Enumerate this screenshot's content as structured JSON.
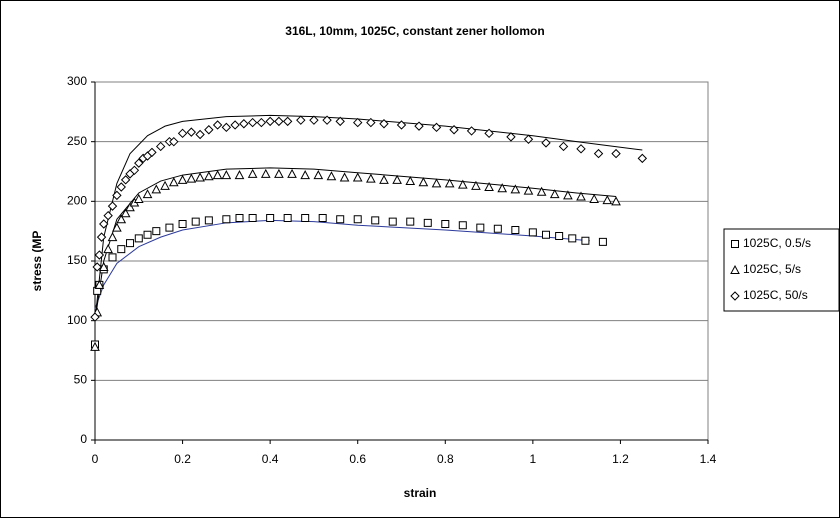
{
  "chart_data": {
    "type": "scatter",
    "title": "316L, 10mm, 1025C, constant zener hollomon",
    "xlabel": "strain",
    "ylabel": "stress (MP",
    "xlim": [
      0,
      1.4
    ],
    "ylim": [
      0,
      300
    ],
    "xticks": [
      0,
      0.2,
      0.4,
      0.6,
      0.8,
      1,
      1.2,
      1.4
    ],
    "yticks": [
      0,
      50,
      100,
      150,
      200,
      250,
      300
    ],
    "grid": true,
    "legend": "right",
    "series": [
      {
        "name": "1025C, 0.5/s",
        "marker": "square",
        "color": "#000000",
        "x": [
          0,
          0.005,
          0.01,
          0.02,
          0.04,
          0.06,
          0.08,
          0.1,
          0.12,
          0.14,
          0.17,
          0.2,
          0.23,
          0.26,
          0.3,
          0.33,
          0.36,
          0.4,
          0.44,
          0.48,
          0.52,
          0.56,
          0.6,
          0.64,
          0.68,
          0.72,
          0.76,
          0.8,
          0.84,
          0.88,
          0.92,
          0.96,
          1.0,
          1.03,
          1.06,
          1.09,
          1.12,
          1.16
        ],
        "values": [
          80,
          125,
          130,
          143,
          153,
          160,
          165,
          169,
          172,
          175,
          178,
          181,
          183,
          184,
          185,
          186,
          186,
          186,
          186,
          186,
          186,
          185,
          185,
          184,
          183,
          183,
          182,
          181,
          180,
          178,
          177,
          176,
          174,
          172,
          171,
          169,
          167,
          166
        ]
      },
      {
        "name": "1025C, 5/s",
        "marker": "triangle",
        "color": "#000000",
        "x": [
          0,
          0.005,
          0.01,
          0.02,
          0.03,
          0.04,
          0.05,
          0.06,
          0.07,
          0.08,
          0.09,
          0.1,
          0.12,
          0.14,
          0.16,
          0.18,
          0.2,
          0.22,
          0.24,
          0.26,
          0.28,
          0.3,
          0.33,
          0.36,
          0.39,
          0.42,
          0.45,
          0.48,
          0.51,
          0.54,
          0.57,
          0.6,
          0.63,
          0.66,
          0.69,
          0.72,
          0.75,
          0.78,
          0.81,
          0.84,
          0.87,
          0.9,
          0.93,
          0.96,
          0.99,
          1.02,
          1.05,
          1.08,
          1.11,
          1.14,
          1.17,
          1.19
        ],
        "values": [
          78,
          107,
          130,
          145,
          160,
          170,
          178,
          185,
          190,
          195,
          199,
          202,
          206,
          210,
          213,
          216,
          218,
          219,
          220,
          221,
          222,
          222,
          222,
          223,
          223,
          223,
          223,
          222,
          222,
          221,
          220,
          220,
          219,
          218,
          218,
          217,
          216,
          215,
          215,
          214,
          213,
          212,
          211,
          210,
          209,
          208,
          206,
          205,
          204,
          202,
          201,
          200
        ]
      },
      {
        "name": "1025C, 50/s",
        "marker": "diamond",
        "color": "#000000",
        "x": [
          0,
          0.005,
          0.01,
          0.015,
          0.02,
          0.03,
          0.04,
          0.05,
          0.06,
          0.07,
          0.08,
          0.09,
          0.1,
          0.11,
          0.12,
          0.13,
          0.15,
          0.17,
          0.18,
          0.2,
          0.22,
          0.24,
          0.26,
          0.28,
          0.3,
          0.32,
          0.34,
          0.36,
          0.38,
          0.4,
          0.42,
          0.44,
          0.47,
          0.5,
          0.53,
          0.56,
          0.6,
          0.63,
          0.66,
          0.7,
          0.74,
          0.78,
          0.82,
          0.86,
          0.9,
          0.95,
          0.99,
          1.03,
          1.07,
          1.11,
          1.15,
          1.19,
          1.25
        ],
        "values": [
          103,
          145,
          155,
          170,
          181,
          188,
          196,
          205,
          212,
          218,
          223,
          226,
          232,
          236,
          238,
          241,
          246,
          250,
          250,
          257,
          258,
          256,
          260,
          264,
          262,
          264,
          265,
          266,
          266,
          267,
          267,
          267,
          268,
          268,
          268,
          267,
          266,
          266,
          265,
          264,
          263,
          262,
          260,
          259,
          257,
          254,
          252,
          249,
          246,
          244,
          240,
          240,
          236
        ]
      }
    ],
    "lines": [
      {
        "color": "#2b3a9a",
        "x": [
          0,
          0.02,
          0.05,
          0.1,
          0.15,
          0.2,
          0.3,
          0.4,
          0.5,
          0.6,
          0.8,
          1.0,
          1.13
        ],
        "values": [
          110,
          130,
          148,
          162,
          170,
          176,
          182,
          184,
          183,
          180,
          176,
          171,
          167
        ]
      },
      {
        "color": "#000000",
        "x": [
          0,
          0.02,
          0.05,
          0.1,
          0.15,
          0.2,
          0.3,
          0.4,
          0.5,
          0.6,
          0.8,
          1.0,
          1.1,
          1.19
        ],
        "values": [
          100,
          150,
          185,
          207,
          217,
          222,
          227,
          228,
          227,
          224,
          218,
          211,
          207,
          204
        ]
      },
      {
        "color": "#000000",
        "x": [
          0,
          0.02,
          0.05,
          0.08,
          0.12,
          0.16,
          0.2,
          0.3,
          0.4,
          0.5,
          0.6,
          0.8,
          1.0,
          1.1,
          1.25
        ],
        "values": [
          100,
          170,
          215,
          240,
          255,
          263,
          267,
          271,
          272,
          271,
          269,
          263,
          255,
          250,
          243
        ]
      }
    ]
  }
}
